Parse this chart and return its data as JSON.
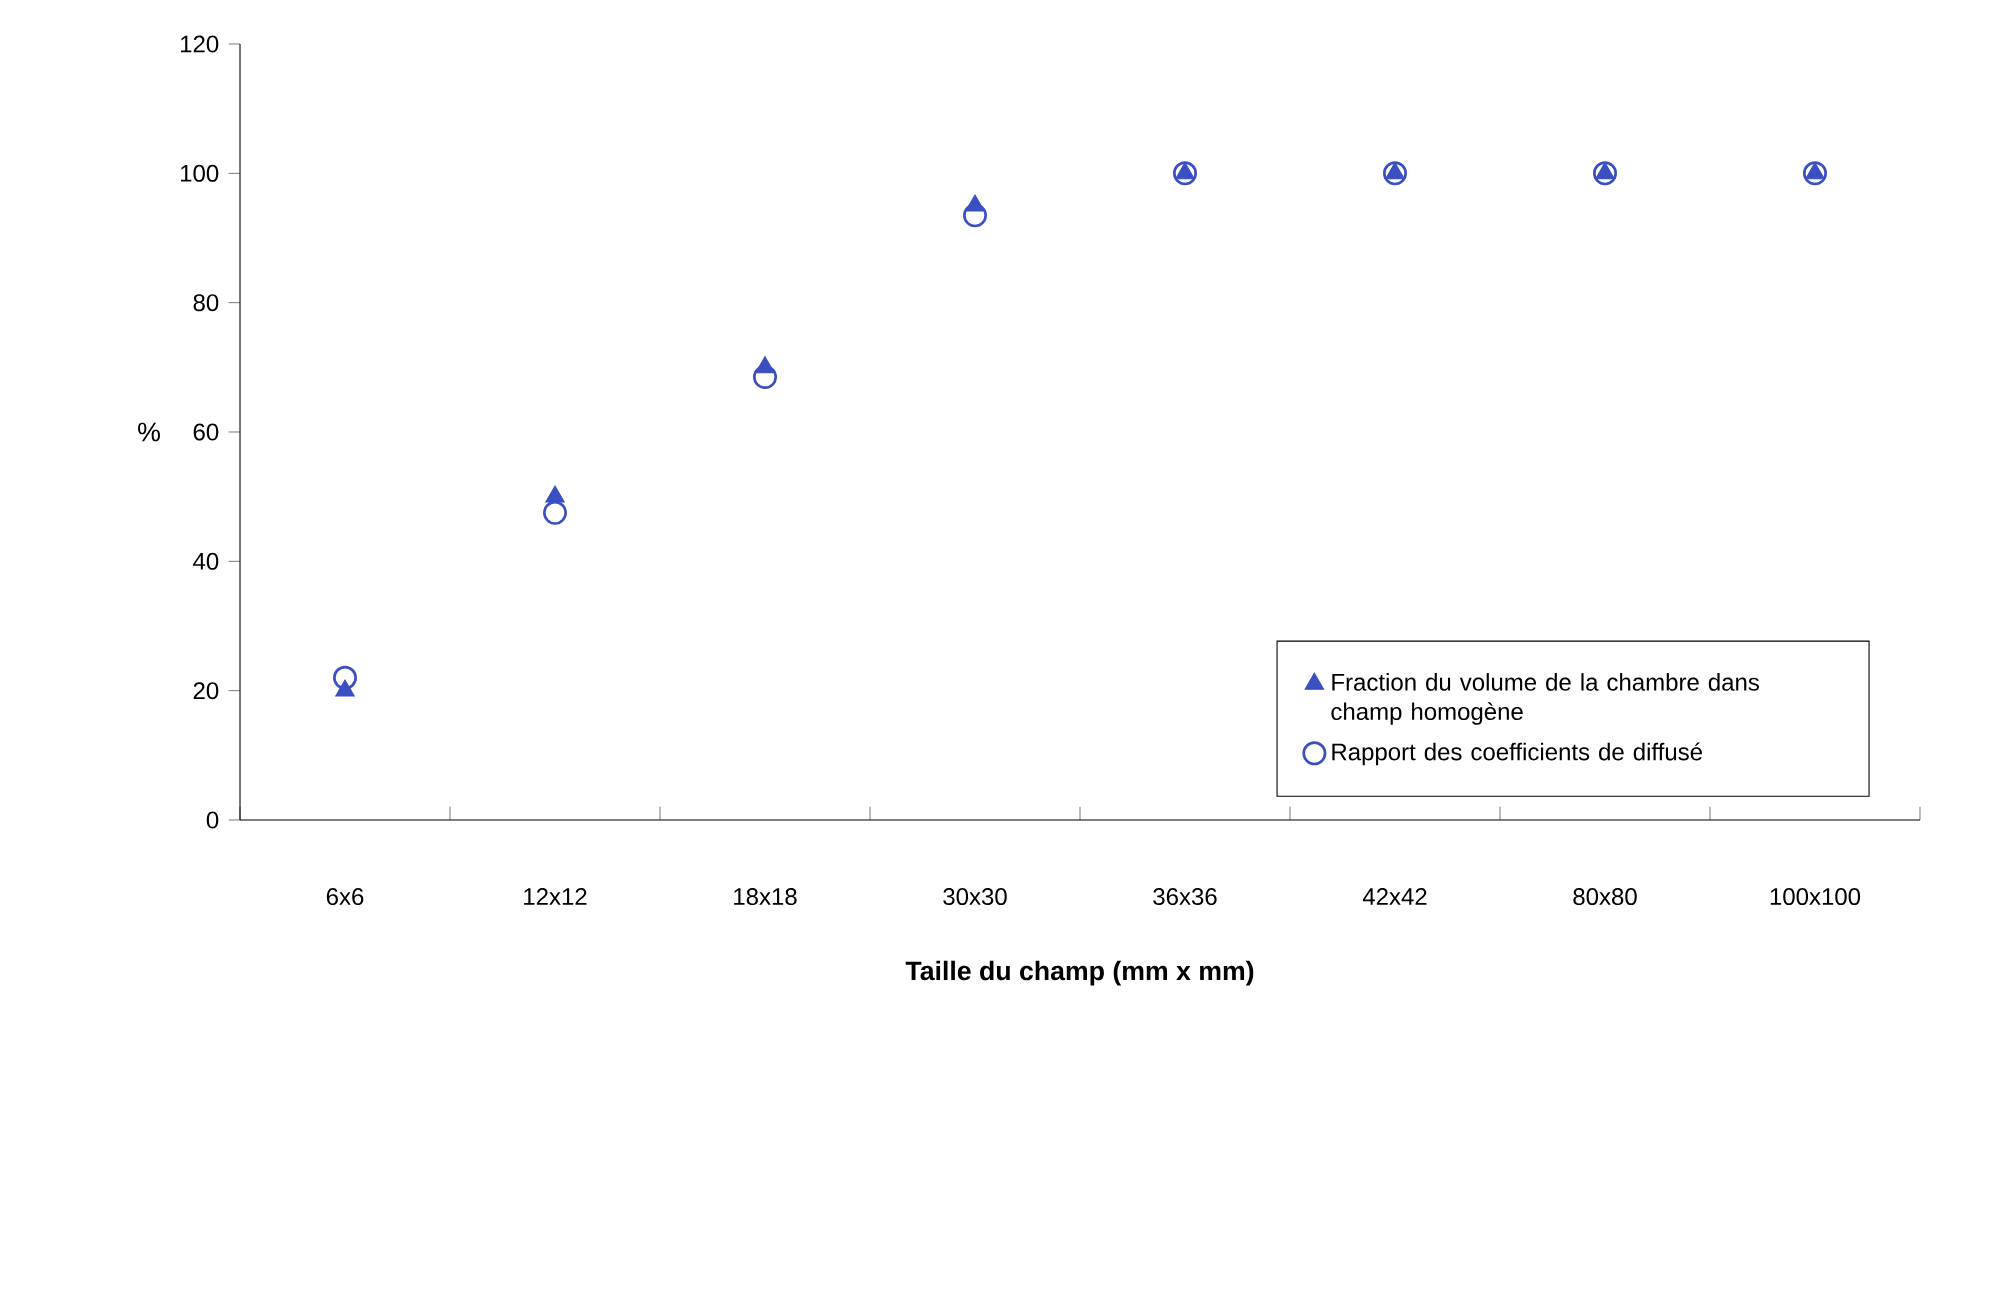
{
  "chart_data": {
    "type": "scatter",
    "xlabel": "Taille du champ (mm x mm)",
    "ylabel": "%",
    "categories": [
      "6x6",
      "12x12",
      "18x18",
      "30x30",
      "36x36",
      "42x42",
      "80x80",
      "100x100"
    ],
    "series": [
      {
        "name": "Fraction du volume de la chambre dans champ homogène",
        "color": "#3a4fc0",
        "marker": "triangle",
        "values": [
          20,
          50,
          70,
          95,
          100,
          100,
          100,
          100
        ]
      },
      {
        "name": "Rapport des coefficients de diffusé",
        "color": "#3a4fc0",
        "marker": "circle",
        "values": [
          22,
          47.5,
          68.5,
          93.5,
          100,
          100,
          100,
          100
        ]
      }
    ],
    "ylim": [
      0,
      120
    ],
    "yticks": [
      0,
      20,
      40,
      60,
      80,
      100,
      120
    ],
    "grid": false,
    "legend": "bottom right"
  }
}
